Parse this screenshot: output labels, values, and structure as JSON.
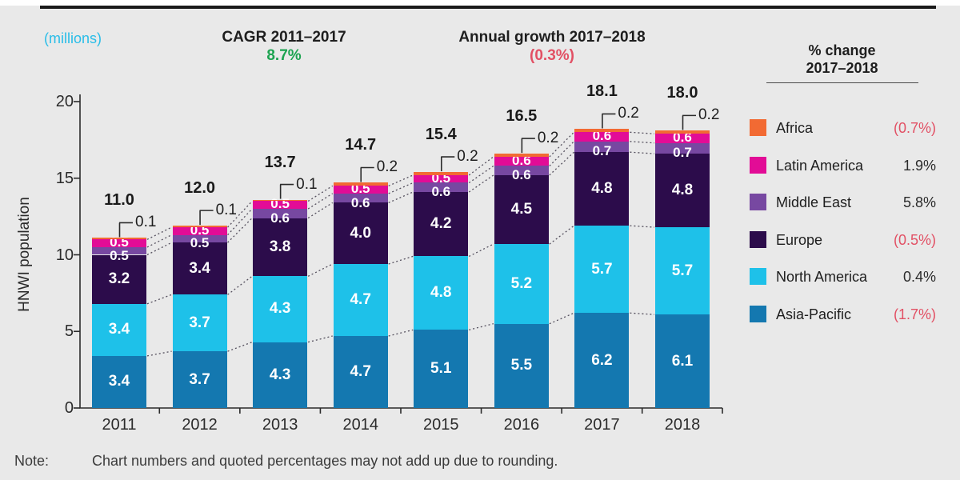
{
  "header": {
    "units_label": "(millions)",
    "cagr": {
      "label": "CAGR 2011–2017",
      "value": "8.7%"
    },
    "annual_growth": {
      "label": "Annual growth 2017–2018",
      "value": "(0.3%)"
    },
    "legend_title": {
      "line1": "% change",
      "line2": "2017–2018"
    }
  },
  "note": {
    "label": "Note:",
    "text": "Chart numbers and quoted percentages may not add up due to rounding."
  },
  "colors": {
    "background": "#E9E9E9",
    "top_rule": "#1A1A1A",
    "units_label": "#29BDE8",
    "positive_green": "#1CA350",
    "negative_rose": "#E25064",
    "axis": "#2B2B2B",
    "connector_dashed": "#55505E",
    "segment_label_text": "#FFFFFF"
  },
  "chart_data": {
    "type": "bar",
    "stacked": true,
    "title": "",
    "ylabel": "HNWI population",
    "xlabel": "",
    "units": "millions",
    "ylim": [
      0,
      20
    ],
    "yticks": [
      0,
      5,
      10,
      15,
      20
    ],
    "grid": false,
    "legend_position": "right",
    "categories": [
      "2011",
      "2012",
      "2013",
      "2014",
      "2015",
      "2016",
      "2017",
      "2018"
    ],
    "totals": [
      "11.0",
      "12.0",
      "13.7",
      "14.7",
      "15.4",
      "16.5",
      "18.1",
      "18.0"
    ],
    "series": [
      {
        "name": "Asia-Pacific",
        "color": "#1478B0",
        "values": [
          3.4,
          3.7,
          4.3,
          4.7,
          5.1,
          5.5,
          6.2,
          6.1
        ],
        "pct_change": "(1.7%)",
        "change_negative": true,
        "callout": false
      },
      {
        "name": "North America",
        "color": "#1EC1E9",
        "values": [
          3.4,
          3.7,
          4.3,
          4.7,
          4.8,
          5.2,
          5.7,
          5.7
        ],
        "pct_change": "0.4%",
        "change_negative": false,
        "callout": false
      },
      {
        "name": "Europe",
        "color": "#2C0C4B",
        "values": [
          3.2,
          3.4,
          3.8,
          4.0,
          4.2,
          4.5,
          4.8,
          4.8
        ],
        "pct_change": "(0.5%)",
        "change_negative": true,
        "callout": false
      },
      {
        "name": "Middle East",
        "color": "#7748A1",
        "values": [
          0.5,
          0.5,
          0.6,
          0.6,
          0.6,
          0.6,
          0.7,
          0.7
        ],
        "pct_change": "5.8%",
        "change_negative": false,
        "callout": false
      },
      {
        "name": "Latin America",
        "color": "#E20C96",
        "values": [
          0.5,
          0.5,
          0.5,
          0.5,
          0.5,
          0.6,
          0.6,
          0.6
        ],
        "pct_change": "1.9%",
        "change_negative": false,
        "callout": false
      },
      {
        "name": "Africa",
        "color": "#F26A33",
        "values": [
          0.1,
          0.1,
          0.1,
          0.2,
          0.2,
          0.2,
          0.2,
          0.2
        ],
        "pct_change": "(0.7%)",
        "change_negative": true,
        "callout": true
      }
    ]
  }
}
